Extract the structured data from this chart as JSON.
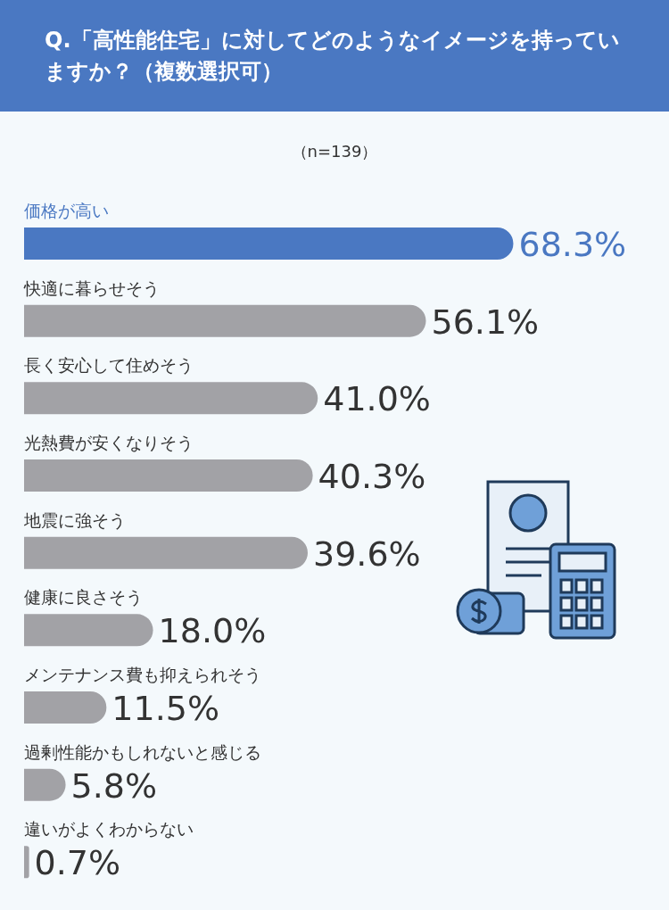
{
  "chart_data": {
    "type": "bar",
    "orientation": "horizontal",
    "title": "Q.「高性能住宅」に対してどのようなイメージを持っていますか？（複数選択可）",
    "subtitle": "（n=139）",
    "categories": [
      "価格が高い",
      "快適に暮らせそう",
      "長く安心して住めそう",
      "光熱費が安くなりそう",
      "地震に強そう",
      "健康に良さそう",
      "メンテナンス費も抑えられそう",
      "過剰性能かもしれないと感じる",
      "違いがよくわからない"
    ],
    "values": [
      68.3,
      56.1,
      41.0,
      40.3,
      39.6,
      18.0,
      11.5,
      5.8,
      0.7
    ],
    "value_labels": [
      "68.3%",
      "56.1%",
      "41.0%",
      "40.3%",
      "39.6%",
      "18.0%",
      "11.5%",
      "5.8%",
      "0.7%"
    ],
    "colors": [
      "#4a78c2",
      "#a2a2a6",
      "#a2a2a6",
      "#a2a2a6",
      "#a2a2a6",
      "#a2a2a6",
      "#a2a2a6",
      "#a2a2a6",
      "#a2a2a6"
    ],
    "legend": false,
    "grid": false
  }
}
